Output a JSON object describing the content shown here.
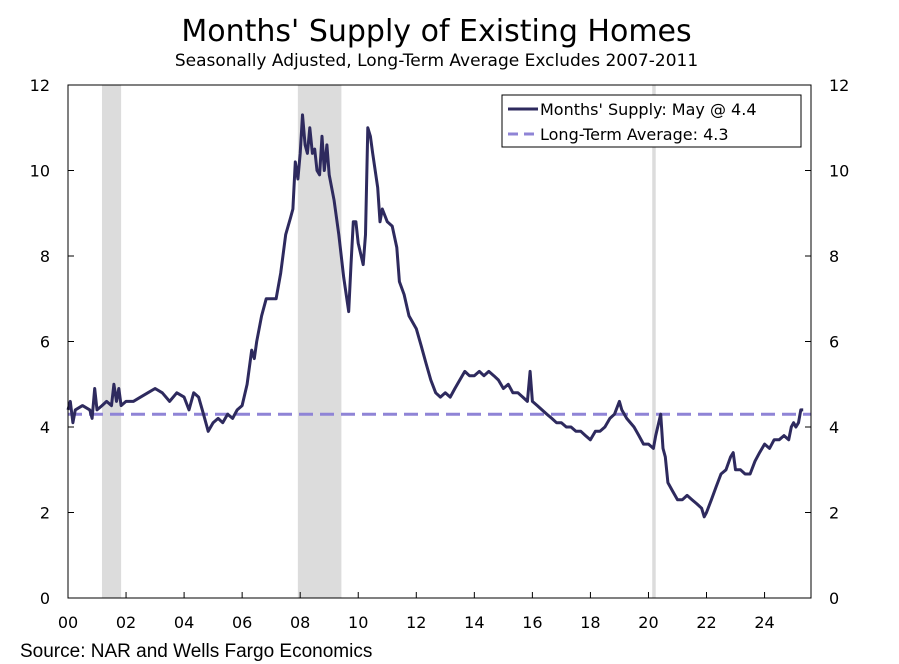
{
  "chart_data": {
    "type": "line",
    "title": "Months' Supply of Existing Homes",
    "subtitle": "Seasonally Adjusted, Long-Term Average Excludes 2007-2011",
    "source": "Source: NAR and Wells Fargo Economics",
    "xlabel": "",
    "ylabel": "",
    "xlim": [
      2000,
      2025.6
    ],
    "ylim": [
      0,
      12
    ],
    "y_ticks": [
      "0",
      "2",
      "4",
      "6",
      "8",
      "10",
      "12"
    ],
    "x_ticks": [
      "00",
      "02",
      "04",
      "06",
      "08",
      "10",
      "12",
      "14",
      "16",
      "18",
      "20",
      "22",
      "24"
    ],
    "recessions": [
      [
        2001.17,
        2001.83
      ],
      [
        2007.92,
        2009.42
      ],
      [
        2020.13,
        2020.25
      ]
    ],
    "legend": {
      "position": "top-right",
      "entries": [
        "Months' Supply: May @ 4.4",
        "Long-Term Average: 4.3"
      ]
    },
    "series": [
      {
        "name": "Months' Supply: May @ 4.4",
        "color": "#2e2a5e",
        "style": "solid",
        "points": [
          [
            2000.0,
            4.4
          ],
          [
            2000.08,
            4.6
          ],
          [
            2000.17,
            4.1
          ],
          [
            2000.25,
            4.4
          ],
          [
            2000.5,
            4.5
          ],
          [
            2000.75,
            4.4
          ],
          [
            2000.83,
            4.2
          ],
          [
            2000.92,
            4.9
          ],
          [
            2001.0,
            4.4
          ],
          [
            2001.17,
            4.5
          ],
          [
            2001.33,
            4.6
          ],
          [
            2001.5,
            4.5
          ],
          [
            2001.58,
            5.0
          ],
          [
            2001.67,
            4.6
          ],
          [
            2001.75,
            4.9
          ],
          [
            2001.83,
            4.5
          ],
          [
            2002.0,
            4.6
          ],
          [
            2002.25,
            4.6
          ],
          [
            2002.5,
            4.7
          ],
          [
            2002.75,
            4.8
          ],
          [
            2003.0,
            4.9
          ],
          [
            2003.25,
            4.8
          ],
          [
            2003.5,
            4.6
          ],
          [
            2003.75,
            4.8
          ],
          [
            2004.0,
            4.7
          ],
          [
            2004.17,
            4.4
          ],
          [
            2004.33,
            4.8
          ],
          [
            2004.5,
            4.7
          ],
          [
            2004.67,
            4.3
          ],
          [
            2004.83,
            3.9
          ],
          [
            2005.0,
            4.1
          ],
          [
            2005.17,
            4.2
          ],
          [
            2005.33,
            4.1
          ],
          [
            2005.5,
            4.3
          ],
          [
            2005.67,
            4.2
          ],
          [
            2005.83,
            4.4
          ],
          [
            2006.0,
            4.5
          ],
          [
            2006.17,
            5.0
          ],
          [
            2006.33,
            5.8
          ],
          [
            2006.42,
            5.6
          ],
          [
            2006.5,
            6.0
          ],
          [
            2006.67,
            6.6
          ],
          [
            2006.83,
            7.0
          ],
          [
            2007.0,
            7.0
          ],
          [
            2007.17,
            7.0
          ],
          [
            2007.33,
            7.6
          ],
          [
            2007.5,
            8.5
          ],
          [
            2007.67,
            8.9
          ],
          [
            2007.75,
            9.1
          ],
          [
            2007.83,
            10.2
          ],
          [
            2007.92,
            9.8
          ],
          [
            2008.0,
            10.4
          ],
          [
            2008.08,
            11.3
          ],
          [
            2008.17,
            10.6
          ],
          [
            2008.25,
            10.4
          ],
          [
            2008.33,
            11.0
          ],
          [
            2008.42,
            10.4
          ],
          [
            2008.5,
            10.5
          ],
          [
            2008.58,
            10.0
          ],
          [
            2008.67,
            9.9
          ],
          [
            2008.75,
            10.8
          ],
          [
            2008.83,
            10.0
          ],
          [
            2008.92,
            10.6
          ],
          [
            2009.0,
            9.9
          ],
          [
            2009.17,
            9.3
          ],
          [
            2009.33,
            8.5
          ],
          [
            2009.5,
            7.5
          ],
          [
            2009.67,
            6.7
          ],
          [
            2009.75,
            7.8
          ],
          [
            2009.83,
            8.8
          ],
          [
            2009.92,
            8.8
          ],
          [
            2010.0,
            8.3
          ],
          [
            2010.17,
            7.8
          ],
          [
            2010.25,
            8.5
          ],
          [
            2010.33,
            11.0
          ],
          [
            2010.42,
            10.8
          ],
          [
            2010.5,
            10.4
          ],
          [
            2010.67,
            9.6
          ],
          [
            2010.75,
            8.8
          ],
          [
            2010.83,
            9.1
          ],
          [
            2011.0,
            8.8
          ],
          [
            2011.17,
            8.7
          ],
          [
            2011.33,
            8.2
          ],
          [
            2011.42,
            7.4
          ],
          [
            2011.58,
            7.1
          ],
          [
            2011.75,
            6.6
          ],
          [
            2012.0,
            6.3
          ],
          [
            2012.17,
            5.9
          ],
          [
            2012.33,
            5.5
          ],
          [
            2012.5,
            5.1
          ],
          [
            2012.67,
            4.8
          ],
          [
            2012.83,
            4.7
          ],
          [
            2013.0,
            4.8
          ],
          [
            2013.17,
            4.7
          ],
          [
            2013.33,
            4.9
          ],
          [
            2013.5,
            5.1
          ],
          [
            2013.67,
            5.3
          ],
          [
            2013.83,
            5.2
          ],
          [
            2014.0,
            5.2
          ],
          [
            2014.17,
            5.3
          ],
          [
            2014.33,
            5.2
          ],
          [
            2014.5,
            5.3
          ],
          [
            2014.67,
            5.2
          ],
          [
            2014.83,
            5.1
          ],
          [
            2015.0,
            4.9
          ],
          [
            2015.17,
            5.0
          ],
          [
            2015.33,
            4.8
          ],
          [
            2015.5,
            4.8
          ],
          [
            2015.67,
            4.7
          ],
          [
            2015.83,
            4.6
          ],
          [
            2015.92,
            5.3
          ],
          [
            2016.0,
            4.6
          ],
          [
            2016.17,
            4.5
          ],
          [
            2016.33,
            4.4
          ],
          [
            2016.5,
            4.3
          ],
          [
            2016.67,
            4.2
          ],
          [
            2016.83,
            4.1
          ],
          [
            2017.0,
            4.1
          ],
          [
            2017.17,
            4.0
          ],
          [
            2017.33,
            4.0
          ],
          [
            2017.5,
            3.9
          ],
          [
            2017.67,
            3.9
          ],
          [
            2017.83,
            3.8
          ],
          [
            2018.0,
            3.7
          ],
          [
            2018.17,
            3.9
          ],
          [
            2018.33,
            3.9
          ],
          [
            2018.5,
            4.0
          ],
          [
            2018.67,
            4.2
          ],
          [
            2018.83,
            4.3
          ],
          [
            2019.0,
            4.6
          ],
          [
            2019.08,
            4.4
          ],
          [
            2019.25,
            4.2
          ],
          [
            2019.5,
            4.0
          ],
          [
            2019.67,
            3.8
          ],
          [
            2019.83,
            3.6
          ],
          [
            2020.0,
            3.6
          ],
          [
            2020.17,
            3.5
          ],
          [
            2020.25,
            3.8
          ],
          [
            2020.42,
            4.3
          ],
          [
            2020.5,
            3.5
          ],
          [
            2020.58,
            3.3
          ],
          [
            2020.67,
            2.7
          ],
          [
            2020.83,
            2.5
          ],
          [
            2021.0,
            2.3
          ],
          [
            2021.17,
            2.3
          ],
          [
            2021.33,
            2.4
          ],
          [
            2021.5,
            2.3
          ],
          [
            2021.67,
            2.2
          ],
          [
            2021.83,
            2.1
          ],
          [
            2021.92,
            1.9
          ],
          [
            2022.0,
            2.0
          ],
          [
            2022.17,
            2.3
          ],
          [
            2022.33,
            2.6
          ],
          [
            2022.5,
            2.9
          ],
          [
            2022.67,
            3.0
          ],
          [
            2022.83,
            3.3
          ],
          [
            2022.92,
            3.4
          ],
          [
            2023.0,
            3.0
          ],
          [
            2023.17,
            3.0
          ],
          [
            2023.33,
            2.9
          ],
          [
            2023.5,
            2.9
          ],
          [
            2023.67,
            3.2
          ],
          [
            2023.83,
            3.4
          ],
          [
            2024.0,
            3.6
          ],
          [
            2024.17,
            3.5
          ],
          [
            2024.33,
            3.7
          ],
          [
            2024.5,
            3.7
          ],
          [
            2024.67,
            3.8
          ],
          [
            2024.83,
            3.7
          ],
          [
            2024.92,
            4.0
          ],
          [
            2025.0,
            4.1
          ],
          [
            2025.08,
            4.0
          ],
          [
            2025.17,
            4.1
          ],
          [
            2025.25,
            4.4
          ],
          [
            2025.33,
            4.4
          ]
        ]
      },
      {
        "name": "Long-Term Average: 4.3",
        "color": "#8f84d6",
        "style": "dashed",
        "points": [
          [
            2000.0,
            4.3
          ],
          [
            2025.6,
            4.3
          ]
        ]
      }
    ]
  }
}
